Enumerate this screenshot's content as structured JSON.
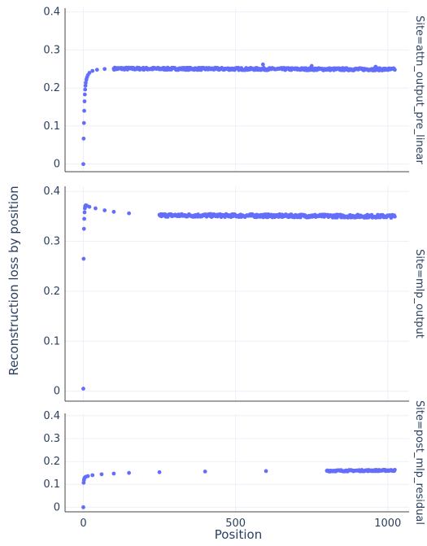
{
  "chart_data": {
    "type": "scatter",
    "xlabel": "Position",
    "ylabel": "Reconstruction loss by position",
    "xlim": [
      -60,
      1070
    ],
    "xticks": [
      0,
      500,
      1000
    ],
    "xtick_labels": [
      "0",
      "500",
      "1000"
    ],
    "grid": true,
    "marker_color": "#636efa",
    "facets": [
      {
        "label": "Site=attn_output_pre_linear",
        "ylim": [
          -0.02,
          0.41
        ],
        "yticks": [
          0,
          0.1,
          0.2,
          0.3,
          0.4
        ],
        "ytick_labels": [
          "0",
          "0.1",
          "0.2",
          "0.3",
          "0.4"
        ],
        "early_points": [
          [
            0,
            0.0
          ],
          [
            1,
            0.067
          ],
          [
            2,
            0.108
          ],
          [
            3,
            0.14
          ],
          [
            4,
            0.165
          ],
          [
            5,
            0.183
          ],
          [
            6,
            0.196
          ],
          [
            7,
            0.206
          ],
          [
            8,
            0.214
          ],
          [
            10,
            0.222
          ],
          [
            12,
            0.228
          ],
          [
            15,
            0.234
          ],
          [
            20,
            0.24
          ],
          [
            30,
            0.245
          ],
          [
            45,
            0.248
          ],
          [
            70,
            0.25
          ],
          [
            100,
            0.251
          ]
        ],
        "plateau": 0.251,
        "end_value": 0.249,
        "outliers": [
          [
            590,
            0.262
          ],
          [
            750,
            0.258
          ],
          [
            960,
            0.256
          ]
        ]
      },
      {
        "label": "Site=mlp_output",
        "ylim": [
          -0.02,
          0.41
        ],
        "yticks": [
          0,
          0.1,
          0.2,
          0.3,
          0.4
        ],
        "ytick_labels": [
          "0",
          "0.1",
          "0.2",
          "0.3",
          "0.4"
        ],
        "early_points": [
          [
            0,
            0.005
          ],
          [
            1,
            0.265
          ],
          [
            2,
            0.325
          ],
          [
            3,
            0.345
          ],
          [
            4,
            0.358
          ],
          [
            5,
            0.366
          ],
          [
            6,
            0.37
          ],
          [
            8,
            0.372
          ],
          [
            12,
            0.371
          ],
          [
            20,
            0.369
          ],
          [
            40,
            0.366
          ],
          [
            70,
            0.362
          ],
          [
            100,
            0.359
          ],
          [
            150,
            0.356
          ],
          [
            250,
            0.353
          ]
        ],
        "plateau": 0.352,
        "end_value": 0.35,
        "outliers": []
      },
      {
        "label": "Site=post_mlp_residual",
        "ylim": [
          -0.02,
          0.41
        ],
        "yticks": [
          0,
          0.1,
          0.2,
          0.3,
          0.4
        ],
        "ytick_labels": [
          "0",
          "0.1",
          "0.2",
          "0.3",
          "0.4"
        ],
        "early_points": [
          [
            0,
            0.0
          ],
          [
            1,
            0.107
          ],
          [
            2,
            0.118
          ],
          [
            3,
            0.125
          ],
          [
            5,
            0.13
          ],
          [
            8,
            0.133
          ],
          [
            15,
            0.136
          ],
          [
            30,
            0.14
          ],
          [
            60,
            0.144
          ],
          [
            100,
            0.147
          ],
          [
            150,
            0.15
          ],
          [
            250,
            0.153
          ],
          [
            400,
            0.156
          ],
          [
            600,
            0.158
          ],
          [
            800,
            0.159
          ]
        ],
        "plateau": 0.159,
        "end_value": 0.161,
        "outliers": []
      }
    ]
  }
}
